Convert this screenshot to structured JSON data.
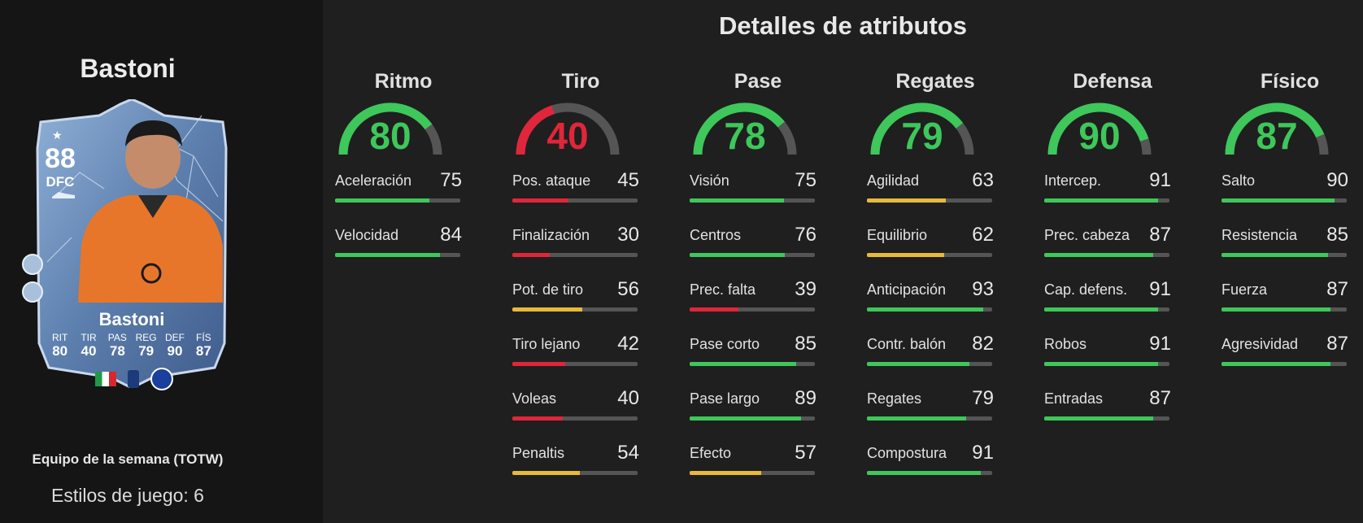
{
  "player": {
    "name": "Bastoni",
    "promo": "Equipo de la semana (TOTW)",
    "playstyles": "Estilos de juego: 6"
  },
  "card": {
    "rating": "88",
    "position": "DFC",
    "name": "Bastoni",
    "stats": [
      {
        "label": "RIT",
        "value": "80"
      },
      {
        "label": "TIR",
        "value": "40"
      },
      {
        "label": "PAS",
        "value": "78"
      },
      {
        "label": "REG",
        "value": "79"
      },
      {
        "label": "DEF",
        "value": "90"
      },
      {
        "label": "FÍS",
        "value": "87"
      }
    ]
  },
  "section_title": "Detalles de atributos",
  "colors": {
    "green": "#3ec75a",
    "red": "#e0263a",
    "yellow": "#e8b93a",
    "track": "#555555"
  },
  "categories": [
    {
      "title": "Ritmo",
      "value": 80,
      "color": "green",
      "stats": [
        {
          "label": "Aceleración",
          "value": 75,
          "color": "green"
        },
        {
          "label": "Velocidad",
          "value": 84,
          "color": "green"
        }
      ]
    },
    {
      "title": "Tiro",
      "value": 40,
      "color": "red",
      "stats": [
        {
          "label": "Pos. ataque",
          "value": 45,
          "color": "red"
        },
        {
          "label": "Finalización",
          "value": 30,
          "color": "red"
        },
        {
          "label": "Pot. de tiro",
          "value": 56,
          "color": "yellow"
        },
        {
          "label": "Tiro lejano",
          "value": 42,
          "color": "red"
        },
        {
          "label": "Voleas",
          "value": 40,
          "color": "red"
        },
        {
          "label": "Penaltis",
          "value": 54,
          "color": "yellow"
        }
      ]
    },
    {
      "title": "Pase",
      "value": 78,
      "color": "green",
      "stats": [
        {
          "label": "Visión",
          "value": 75,
          "color": "green"
        },
        {
          "label": "Centros",
          "value": 76,
          "color": "green"
        },
        {
          "label": "Prec. falta",
          "value": 39,
          "color": "red"
        },
        {
          "label": "Pase corto",
          "value": 85,
          "color": "green"
        },
        {
          "label": "Pase largo",
          "value": 89,
          "color": "green"
        },
        {
          "label": "Efecto",
          "value": 57,
          "color": "yellow"
        }
      ]
    },
    {
      "title": "Regates",
      "value": 79,
      "color": "green",
      "stats": [
        {
          "label": "Agilidad",
          "value": 63,
          "color": "yellow"
        },
        {
          "label": "Equilibrio",
          "value": 62,
          "color": "yellow"
        },
        {
          "label": "Anticipación",
          "value": 93,
          "color": "green"
        },
        {
          "label": "Contr. balón",
          "value": 82,
          "color": "green"
        },
        {
          "label": "Regates",
          "value": 79,
          "color": "green"
        },
        {
          "label": "Compostura",
          "value": 91,
          "color": "green"
        }
      ]
    },
    {
      "title": "Defensa",
      "value": 90,
      "color": "green",
      "stats": [
        {
          "label": "Intercep.",
          "value": 91,
          "color": "green"
        },
        {
          "label": "Prec. cabeza",
          "value": 87,
          "color": "green"
        },
        {
          "label": "Cap. defens.",
          "value": 91,
          "color": "green"
        },
        {
          "label": "Robos",
          "value": 91,
          "color": "green"
        },
        {
          "label": "Entradas",
          "value": 87,
          "color": "green"
        }
      ]
    },
    {
      "title": "Físico",
      "value": 87,
      "color": "green",
      "stats": [
        {
          "label": "Salto",
          "value": 90,
          "color": "green"
        },
        {
          "label": "Resistencia",
          "value": 85,
          "color": "green"
        },
        {
          "label": "Fuerza",
          "value": 87,
          "color": "green"
        },
        {
          "label": "Agresividad",
          "value": 87,
          "color": "green"
        }
      ]
    }
  ]
}
